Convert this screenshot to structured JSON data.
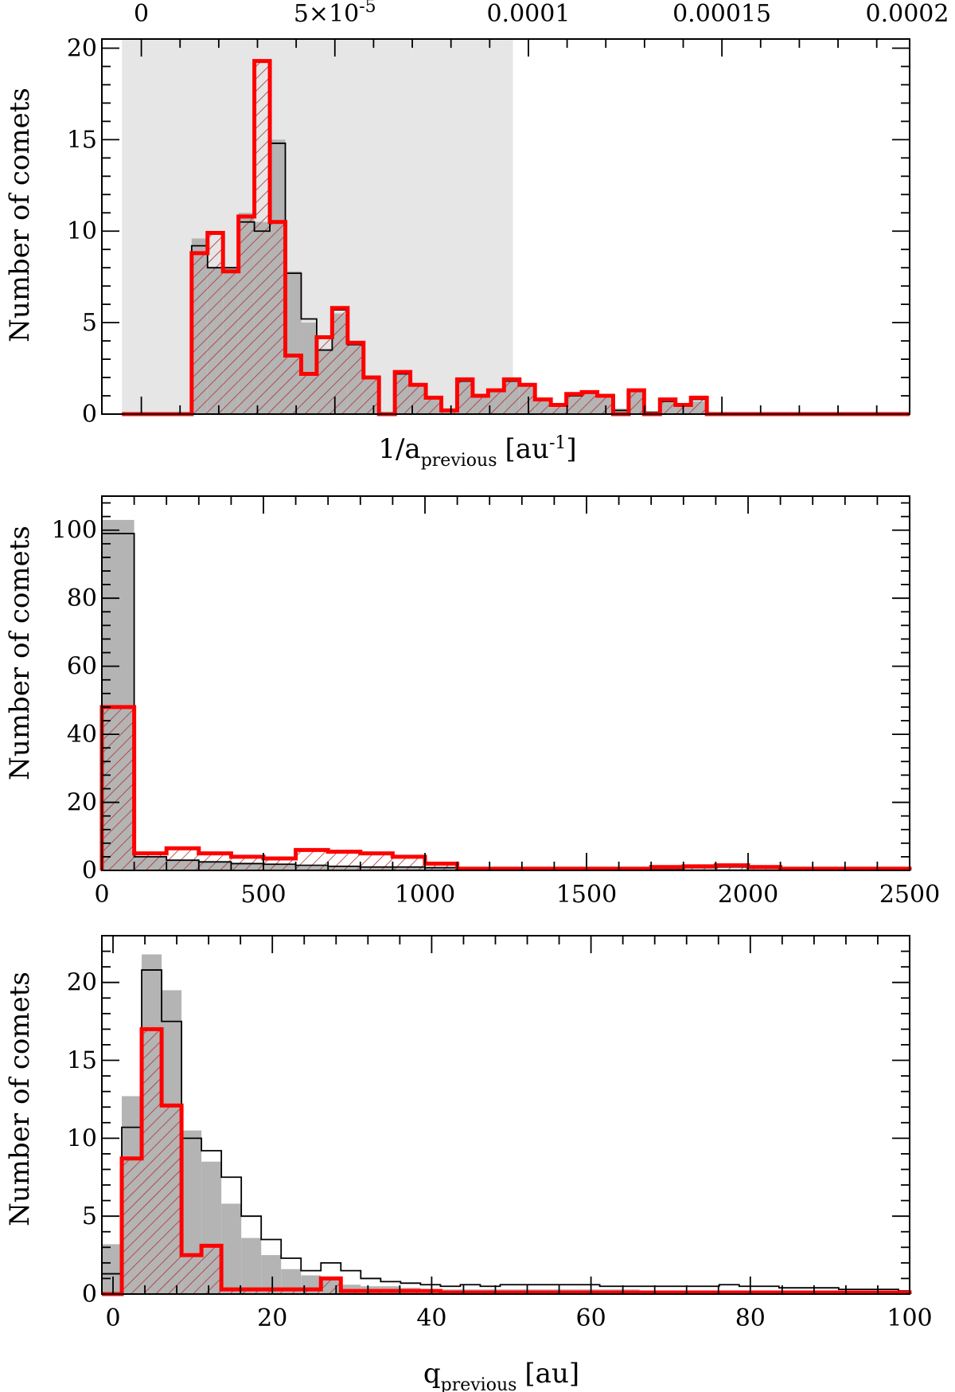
{
  "chart_data": [
    {
      "type": "histogram",
      "panel": "top",
      "xlabel": "1/a",
      "xlabel_subscript": "previous",
      "xlabel_unit": "[au",
      "xlabel_unit_exp": "-1",
      "xlabel_unit_end": "]",
      "ylabel": "Number of comets",
      "bin_edges": [
        -5e-06,
        1.3e-05,
        1.71e-05,
        2.11e-05,
        2.51e-05,
        2.92e-05,
        3.32e-05,
        3.72e-05,
        4.13e-05,
        4.53e-05,
        4.93e-05,
        5.33e-05,
        5.74e-05,
        6.14e-05,
        6.55e-05,
        6.95e-05,
        7.35e-05,
        7.75e-05,
        8.16e-05,
        8.56e-05,
        8.96e-05,
        9.37e-05,
        9.77e-05,
        0.0001017,
        0.0001058,
        0.0001098,
        0.0001138,
        0.0001178,
        0.0001219,
        0.0001259,
        0.0001299,
        0.000134,
        0.000138,
        0.000142,
        0.0001461,
        0.0001501,
        0.0001541,
        0.0001582,
        0.0001622,
        0.0001662,
        0.0001702,
        0.0001743,
        0.0001783,
        0.0001823,
        0.0001864,
        0.0001904,
        0.0001944,
        0.0001985
      ],
      "xlim": [
        -1.02e-05,
        0.0001985
      ],
      "ylim": [
        0,
        20.5
      ],
      "shaded_region": [
        -5e-06,
        9.6e-05
      ],
      "xticks_top": [
        0,
        5e-05,
        0.0001,
        0.00015,
        0.0002
      ],
      "xtick_labels_top": [
        "0",
        "5×10",
        "0.0001",
        "0.00015",
        "0.0002"
      ],
      "xtick_label_top_exp": "-5",
      "yticks": [
        0,
        5,
        10,
        15,
        20
      ],
      "ytick_labels": [
        "0",
        "5",
        "10",
        "15",
        "20"
      ],
      "series": [
        {
          "role": "filled-gray",
          "values": [
            0,
            9.6,
            8.0,
            8.0,
            11.0,
            10.5,
            15.0,
            7.8,
            5.0,
            3.5,
            5.5,
            3.8,
            2.0,
            0,
            2.2,
            1.5,
            0.9,
            0.2,
            1.8,
            1.0,
            1.3,
            1.8,
            1.5,
            0.8,
            0.5,
            1.0,
            1.2,
            1.0,
            0.3,
            1.3,
            0.1,
            0.7,
            0.5,
            0.7,
            0,
            0,
            0,
            0,
            0,
            0,
            0,
            0,
            0,
            0,
            0,
            0,
            0
          ]
        },
        {
          "role": "outline-black",
          "values": [
            0,
            9.2,
            8.0,
            8.0,
            10.5,
            10.0,
            14.8,
            7.7,
            5.2,
            3.5,
            5.7,
            3.8,
            2.0,
            0,
            2.2,
            1.6,
            0.9,
            0.2,
            1.8,
            1.0,
            1.3,
            1.8,
            1.6,
            0.8,
            0.5,
            1.0,
            1.2,
            1.0,
            0.2,
            1.3,
            0.1,
            0.7,
            0.5,
            0.8,
            0,
            0,
            0,
            0,
            0,
            0,
            0,
            0,
            0,
            0,
            0,
            0,
            0
          ]
        },
        {
          "role": "red-hatched",
          "values": [
            0,
            8.8,
            9.9,
            7.8,
            10.8,
            19.3,
            10.5,
            3.2,
            2.2,
            4.2,
            5.8,
            3.9,
            2.0,
            0,
            2.3,
            1.6,
            0.9,
            0.2,
            1.9,
            1.0,
            1.3,
            1.9,
            1.6,
            0.8,
            0.5,
            1.1,
            1.2,
            1.0,
            0,
            1.3,
            0,
            0.8,
            0.5,
            0.9,
            0,
            0,
            0,
            0,
            0,
            0,
            0,
            0,
            0,
            0,
            0,
            0,
            0
          ]
        }
      ]
    },
    {
      "type": "histogram",
      "panel": "middle",
      "xlabel": "",
      "ylabel": "Number of comets",
      "bin_edges": [
        0,
        100,
        200,
        300,
        400,
        500,
        600,
        700,
        800,
        900,
        1000,
        1100,
        1200,
        1300,
        1400,
        1500,
        1600,
        1700,
        1800,
        1900,
        2000,
        2100,
        2200,
        2300,
        2400,
        2500
      ],
      "xlim": [
        0,
        2500
      ],
      "ylim": [
        0,
        110
      ],
      "xticks": [
        0,
        500,
        1000,
        1500,
        2000,
        2500
      ],
      "xtick_labels": [
        "0",
        "500",
        "1000",
        "1500",
        "2000",
        "2500"
      ],
      "yticks": [
        0,
        20,
        40,
        60,
        80,
        100
      ],
      "ytick_labels": [
        "0",
        "20",
        "40",
        "60",
        "80",
        "100"
      ],
      "series": [
        {
          "role": "filled-gray",
          "values": [
            103,
            4,
            3,
            2.5,
            2,
            1.5,
            1.2,
            1,
            1,
            1,
            0.8,
            0.5,
            0.5,
            0.5,
            0.5,
            0.5,
            0.5,
            0.5,
            0.5,
            0.5,
            0.5,
            0.5,
            0.5,
            0.5,
            0.5
          ]
        },
        {
          "role": "outline-black",
          "values": [
            99,
            4,
            3,
            2.5,
            2,
            1.8,
            1.5,
            1.2,
            1,
            1,
            0.8,
            0.5,
            0.5,
            0.5,
            0.5,
            0.5,
            0.5,
            0.5,
            0.8,
            1,
            0.8,
            0.5,
            0.5,
            0.5,
            0.5
          ]
        },
        {
          "role": "red-hatched",
          "values": [
            48,
            5,
            6.5,
            5,
            4,
            3.5,
            6,
            5.5,
            5,
            4,
            2,
            0.5,
            0.5,
            0.5,
            0.5,
            0.5,
            0.5,
            1,
            1.2,
            1.5,
            1,
            0.5,
            0.5,
            0.5,
            0.5
          ]
        }
      ]
    },
    {
      "type": "histogram",
      "panel": "bottom",
      "xlabel": "q",
      "xlabel_subscript": "previous",
      "xlabel_unit": "[au]",
      "ylabel": "Number of comets",
      "bin_edges": [
        -1.4,
        1.1,
        3.6,
        6.1,
        8.6,
        11.1,
        13.6,
        16.1,
        18.6,
        21.1,
        23.6,
        26.1,
        28.6,
        31.1,
        33.6,
        36.1,
        38.6,
        41.1,
        43.6,
        46.1,
        48.6,
        51.1,
        53.6,
        56.1,
        58.6,
        61.1,
        63.6,
        66.1,
        68.6,
        71.1,
        73.6,
        76.1,
        78.6,
        81.1,
        83.6,
        86.1,
        88.6,
        91.1,
        93.6,
        96.1,
        98.6,
        100
      ],
      "xlim": [
        -1.4,
        100
      ],
      "ylim": [
        0,
        23
      ],
      "xticks": [
        0,
        20,
        40,
        60,
        80,
        100
      ],
      "xtick_labels": [
        "0",
        "20",
        "40",
        "60",
        "80",
        "100"
      ],
      "yticks": [
        0,
        5,
        10,
        15,
        20
      ],
      "ytick_labels": [
        "0",
        "5",
        "10",
        "15",
        "20"
      ],
      "series": [
        {
          "role": "filled-gray",
          "values": [
            3.2,
            12.7,
            21.8,
            19.5,
            10.5,
            8.5,
            5.8,
            3.6,
            2.5,
            1.6,
            1.2,
            0.9,
            0.6,
            0.5,
            0.5,
            0.4,
            0.3,
            0.3,
            0.3,
            0.3,
            0.3,
            0.3,
            0.3,
            0.3,
            0.3,
            0.3,
            0.3,
            0.2,
            0.2,
            0.2,
            0.2,
            0.2,
            0.2,
            0.2,
            0.2,
            0.2,
            0.2,
            0.2,
            0.2,
            0.2,
            0.2
          ]
        },
        {
          "role": "outline-black",
          "values": [
            1.3,
            10.7,
            20.8,
            17.5,
            10.0,
            9.2,
            7.5,
            5.0,
            3.5,
            2.3,
            1.5,
            2.0,
            1.5,
            1.0,
            0.8,
            0.7,
            0.6,
            0.5,
            0.6,
            0.5,
            0.6,
            0.6,
            0.6,
            0.6,
            0.6,
            0.5,
            0.5,
            0.5,
            0.5,
            0.5,
            0.5,
            0.6,
            0.5,
            0.5,
            0.4,
            0.4,
            0.4,
            0.3,
            0.3,
            0.3,
            0.2
          ]
        },
        {
          "role": "red-hatched",
          "values": [
            0,
            8.7,
            17.0,
            12.1,
            2.5,
            3.1,
            0.3,
            0.3,
            0.3,
            0.3,
            0.3,
            1.0,
            0.2,
            0.2,
            0.2,
            0.2,
            0.2,
            0.1,
            0.1,
            0.1,
            0.1,
            0.1,
            0.1,
            0.1,
            0.1,
            0.1,
            0.1,
            0.1,
            0.1,
            0.1,
            0.1,
            0.1,
            0.1,
            0.1,
            0.1,
            0.1,
            0.1,
            0.1,
            0.1,
            0.1,
            0.1
          ]
        }
      ]
    }
  ],
  "colors": {
    "gray_fill": "#b4b4b4",
    "shaded_region": "#e6e6e6",
    "red": "#ff0000",
    "hatch": "#b03030",
    "black": "#000000"
  }
}
